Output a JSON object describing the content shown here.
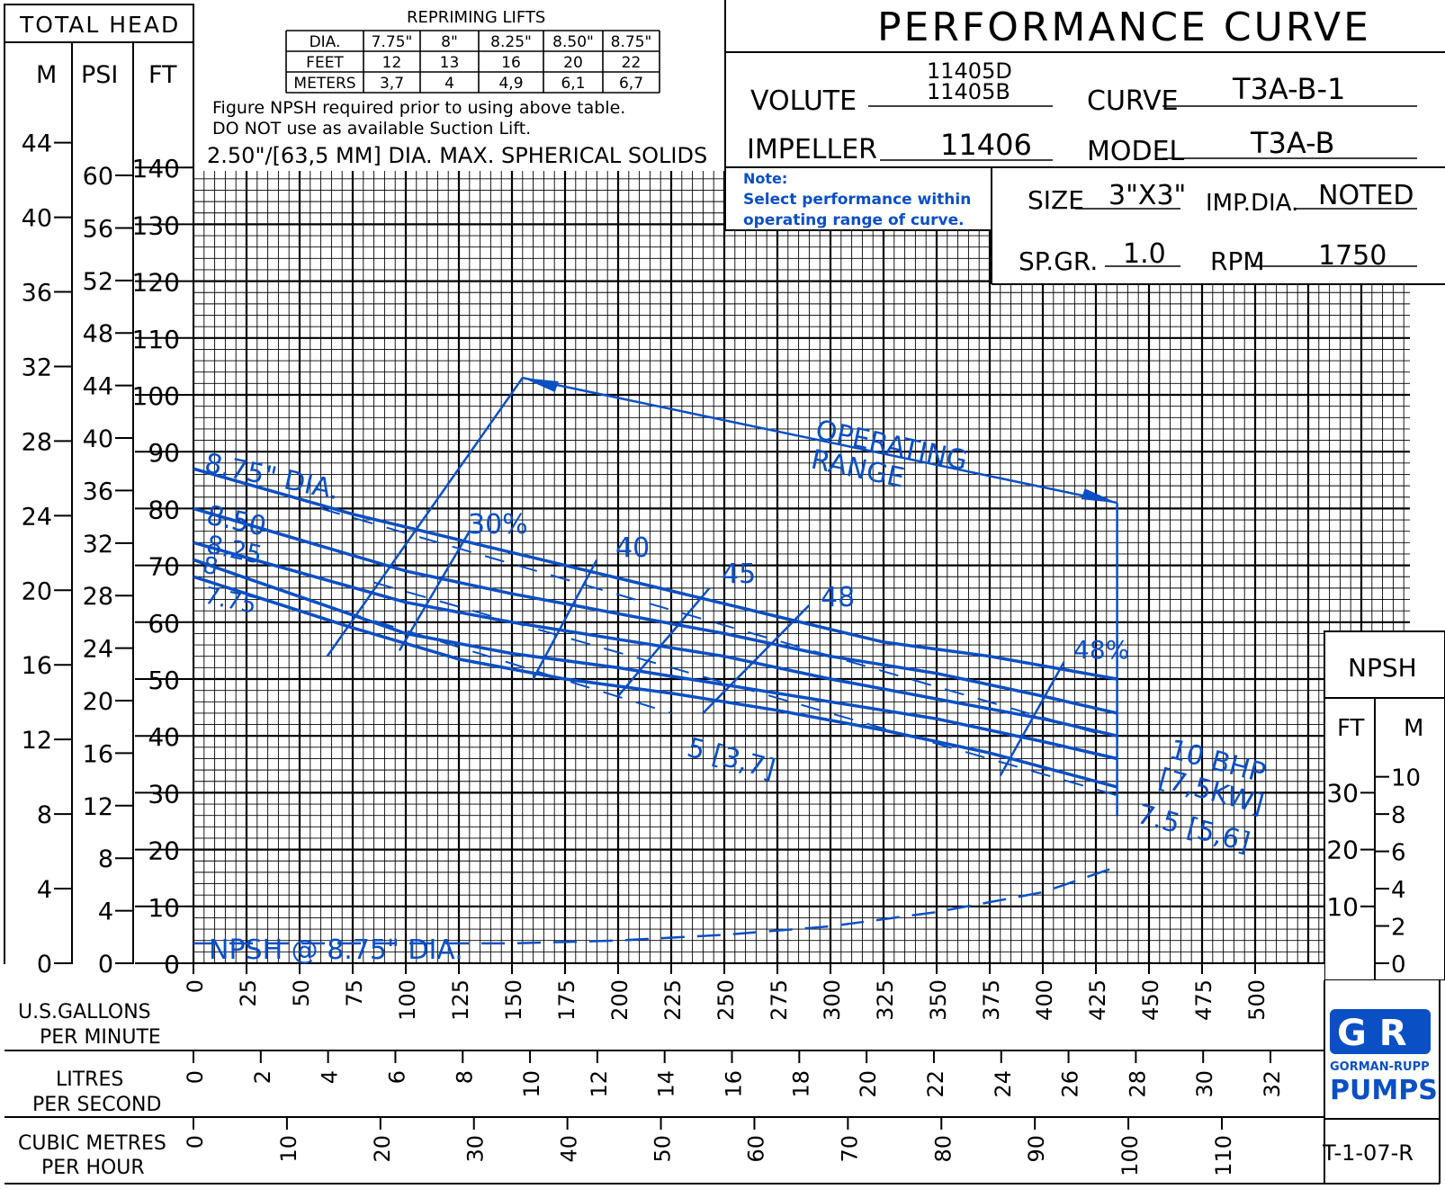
{
  "header": {
    "total_head": "TOTAL HEAD",
    "col_m": "M",
    "col_psi": "PSI",
    "col_ft": "FT",
    "title": "PERFORMANCE CURVE",
    "volute_label": "VOLUTE",
    "volute_value_1": "11405D",
    "volute_value_2": "11405B",
    "curve_label": "CURVE",
    "curve_value": "T3A-B-1",
    "impeller_label": "IMPELLER",
    "impeller_value": "11406",
    "model_label": "MODEL",
    "model_value": "T3A-B",
    "size_label": "SIZE",
    "size_value": "3\"X3\"",
    "impdia_label": "IMP.DIA.",
    "impdia_value": "NOTED",
    "spgr_label": "SP.GR.",
    "spgr_value": "1.0",
    "rpm_label": "RPM",
    "rpm_value": "1750",
    "note_1": "Note:",
    "note_2": "Select performance within",
    "note_3": "operating range of curve."
  },
  "repriming": {
    "title": "REPRIMING LIFTS",
    "rows": [
      [
        "DIA.",
        "7.75\"",
        "8\"",
        "8.25\"",
        "8.50\"",
        "8.75\""
      ],
      [
        "FEET",
        "12",
        "13",
        "16",
        "20",
        "22"
      ],
      [
        "METERS",
        "3,7",
        "4",
        "4,9",
        "6,1",
        "6,7"
      ]
    ],
    "note_1": "Figure NPSH required prior to using above table.",
    "note_2": "DO NOT use as available Suction Lift.",
    "solids": "2.50\"/[63,5 MM] DIA. MAX. SPHERICAL SOLIDS"
  },
  "axes": {
    "ft_ticks": [
      "0",
      "10",
      "20",
      "30",
      "40",
      "50",
      "60",
      "70",
      "80",
      "90",
      "100",
      "110",
      "120",
      "130",
      "140"
    ],
    "psi_ticks": [
      "0",
      "4",
      "8",
      "12",
      "16",
      "20",
      "24",
      "28",
      "32",
      "36",
      "40",
      "44",
      "48",
      "52",
      "56",
      "60"
    ],
    "m_ticks": [
      "0",
      "4",
      "8",
      "12",
      "16",
      "20",
      "24",
      "28",
      "32",
      "36",
      "40",
      "44"
    ],
    "gpm_ticks": [
      "0",
      "25",
      "50",
      "75",
      "100",
      "125",
      "150",
      "175",
      "200",
      "225",
      "250",
      "275",
      "300",
      "325",
      "350",
      "375",
      "400",
      "425",
      "450",
      "475",
      "500"
    ],
    "lps_ticks": [
      "0",
      "2",
      "4",
      "6",
      "8",
      "10",
      "12",
      "14",
      "16",
      "18",
      "20",
      "22",
      "24",
      "26",
      "28",
      "30",
      "32"
    ],
    "m3h_ticks": [
      "0",
      "10",
      "20",
      "30",
      "40",
      "50",
      "60",
      "70",
      "80",
      "90",
      "100",
      "110"
    ],
    "gpm_label_1": "U.S.GALLONS",
    "gpm_label_2": "PER MINUTE",
    "lps_label_1": "LITRES",
    "lps_label_2": "PER SECOND",
    "m3h_label_1": "CUBIC METRES",
    "m3h_label_2": "PER HOUR"
  },
  "npsh_panel": {
    "title": "NPSH",
    "col_ft": "FT",
    "col_m": "M",
    "ft_ticks": [
      "10",
      "20",
      "30"
    ],
    "m_ticks": [
      "0",
      "2",
      "4",
      "6",
      "8",
      "10"
    ],
    "zero_ft": "0"
  },
  "footer": {
    "brand_1": "GORMAN-RUPP",
    "brand_2": "PUMPS",
    "doc_code": "T-1-07-R"
  },
  "chart_data": {
    "type": "line",
    "xlabel": "U.S.GALLONS PER MINUTE",
    "ylabel": "TOTAL HEAD",
    "xlim": [
      0,
      500
    ],
    "ylim": [
      0,
      140
    ],
    "grid": true,
    "series": [
      {
        "name": "8.75\" DIA.",
        "x": [
          0,
          75,
          125,
          175,
          225,
          275,
          325,
          375,
          435
        ],
        "y": [
          87,
          79,
          74.5,
          70,
          65.5,
          61,
          56.5,
          54,
          50
        ]
      },
      {
        "name": "8.50",
        "x": [
          0,
          100,
          150,
          200,
          250,
          300,
          350,
          400,
          435
        ],
        "y": [
          80,
          69,
          65,
          61.5,
          58,
          54,
          51,
          47,
          44
        ]
      },
      {
        "name": "8.25",
        "x": [
          0,
          100,
          150,
          200,
          250,
          300,
          350,
          400,
          435
        ],
        "y": [
          74,
          63.5,
          60,
          57,
          54,
          50,
          46.5,
          43,
          40
        ]
      },
      {
        "name": "8",
        "x": [
          0,
          100,
          150,
          200,
          250,
          300,
          350,
          400,
          435
        ],
        "y": [
          71,
          58,
          54.5,
          52,
          49,
          46,
          43,
          39,
          36
        ]
      },
      {
        "name": "7.75",
        "x": [
          0,
          75,
          125,
          175,
          225,
          275,
          325,
          375,
          435
        ],
        "y": [
          68,
          59,
          53.5,
          50,
          47.5,
          44.5,
          41,
          37,
          31
        ]
      }
    ],
    "efficiency_labels": [
      "30%",
      "40",
      "45",
      "48",
      "48%"
    ],
    "bhp_labels": [
      "5 [3,7]",
      "7.5 [5,6]",
      "10 BHP",
      "[7,5KW]"
    ],
    "operating_range": {
      "label_1": "OPERATING",
      "label_2": "RANGE",
      "x": [
        155,
        435
      ],
      "y": [
        103,
        81
      ]
    },
    "npsh": {
      "name": "NPSH @ 8.75\" DIA.",
      "x": [
        0,
        50,
        100,
        150,
        200,
        250,
        300,
        350,
        400,
        435
      ],
      "y_ft": [
        3.5,
        3.5,
        3.5,
        3.5,
        4,
        5,
        6.5,
        9,
        12.5,
        17
      ]
    }
  }
}
